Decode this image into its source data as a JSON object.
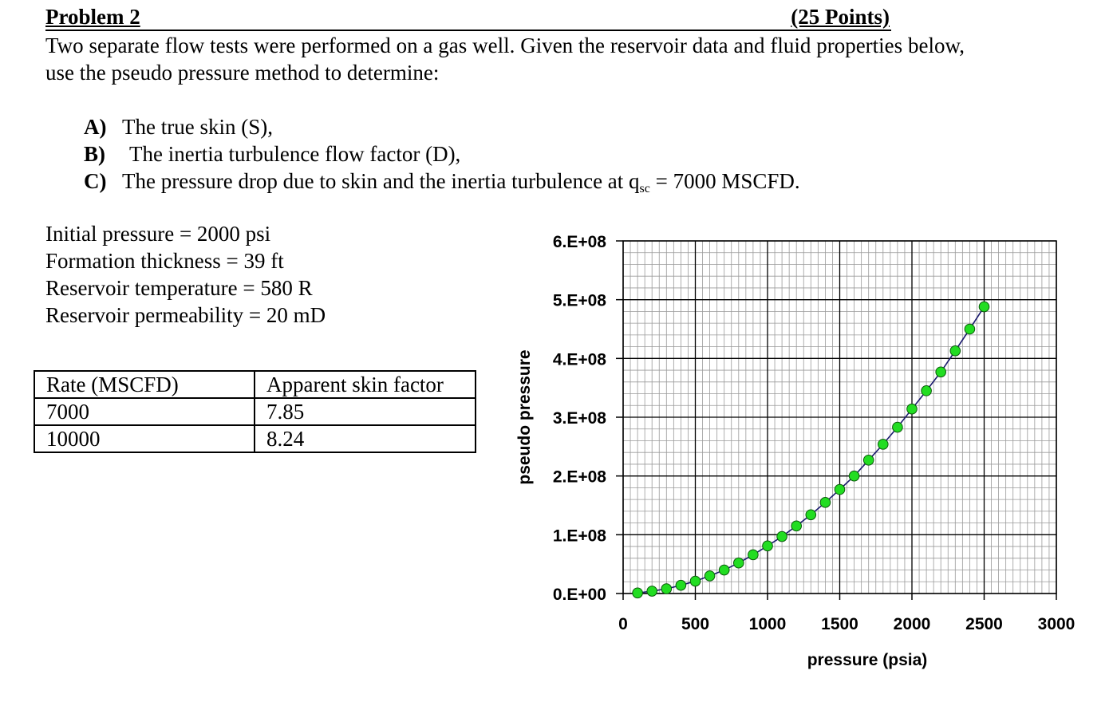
{
  "header": {
    "title": "Problem 2",
    "points": "(25 Points)"
  },
  "intro": "Two separate flow tests were performed on a gas well. Given the reservoir data and fluid properties below, use the pseudo pressure method to determine:",
  "questions": [
    {
      "label": "A)",
      "text": "The true skin (S),"
    },
    {
      "label": "B)",
      "text": "The inertia turbulence flow factor (D),"
    },
    {
      "label": "C)",
      "text_before": "The pressure drop due to skin and the inertia turbulence at q",
      "subscript": "sc",
      "text_after": " = 7000 MSCFD."
    }
  ],
  "given": [
    "Initial pressure = 2000 psi",
    "Formation thickness = 39 ft",
    "Reservoir temperature = 580 R",
    "Reservoir permeability = 20 mD"
  ],
  "rate_table": {
    "headers": [
      "Rate (MSCFD)",
      "Apparent skin factor"
    ],
    "rows": [
      [
        "7000",
        "7.85"
      ],
      [
        "10000",
        "8.24"
      ]
    ]
  },
  "chart_data": {
    "type": "scatter",
    "title": "",
    "xlabel": "pressure (psia)",
    "ylabel": "pseudo pressure",
    "xlim": [
      0,
      3000
    ],
    "ylim": [
      0,
      600000000
    ],
    "x_ticks": [
      0,
      500,
      1000,
      1500,
      2000,
      2500,
      3000
    ],
    "x_tick_labels": [
      "0",
      "500",
      "1000",
      "1500",
      "2000",
      "2500",
      "3000"
    ],
    "y_ticks": [
      0,
      100000000,
      200000000,
      300000000,
      400000000,
      500000000,
      600000000
    ],
    "y_tick_labels": [
      "0.E+00",
      "1.E+08",
      "2.E+08",
      "3.E+08",
      "4.E+08",
      "5.E+08",
      "6.E+08"
    ],
    "grid": true,
    "series": [
      {
        "name": "pseudo pressure",
        "marker_color": "#22dd22",
        "line_color": "#1a1a6e",
        "x": [
          100,
          200,
          300,
          400,
          500,
          600,
          700,
          800,
          900,
          1000,
          1100,
          1200,
          1300,
          1400,
          1500,
          1600,
          1700,
          1800,
          1900,
          2000,
          2100,
          2200,
          2300,
          2400,
          2500
        ],
        "y": [
          1000000,
          4000000,
          8000000,
          14000000,
          21000000,
          30000000,
          40000000,
          52000000,
          66000000,
          81000000,
          97000000,
          115000000,
          134000000,
          155000000,
          177000000,
          200000000,
          227000000,
          254000000,
          283000000,
          314000000,
          345000000,
          377000000,
          413000000,
          450000000,
          488000000
        ]
      }
    ]
  }
}
